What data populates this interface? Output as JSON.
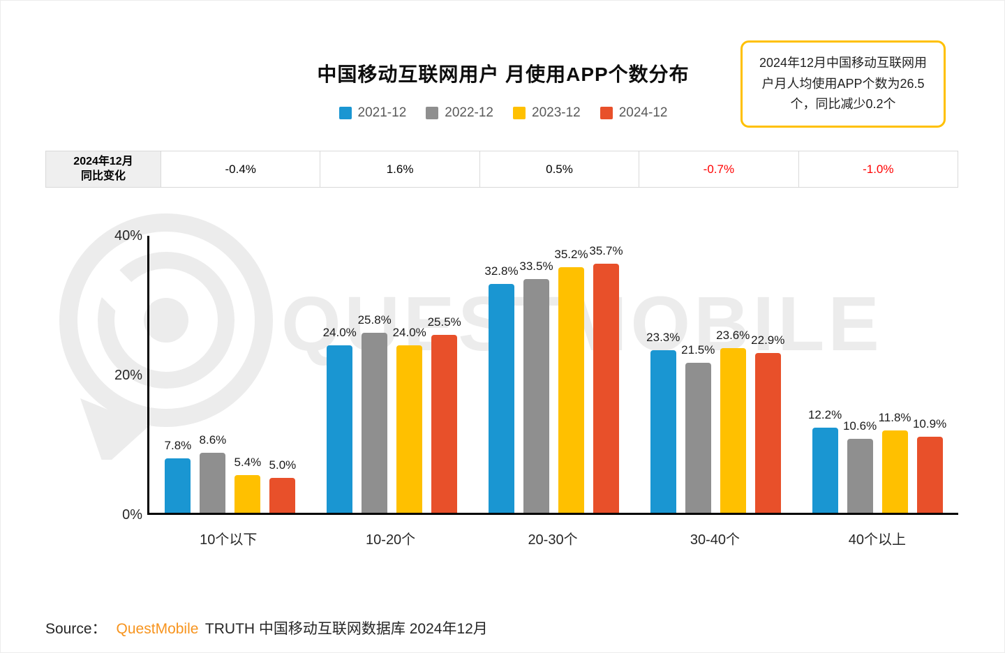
{
  "header": {
    "title": "中国移动互联网用户 月使用APP个数分布",
    "callout": "2024年12月中国移动互联网用户月人均使用APP个数为26.5个，同比减少0.2个"
  },
  "yoy_table": {
    "row_header": "2024年12月\n同比变化",
    "values": [
      {
        "text": "-0.4%",
        "color": "#000000"
      },
      {
        "text": "1.6%",
        "color": "#000000"
      },
      {
        "text": "0.5%",
        "color": "#000000"
      },
      {
        "text": "-0.7%",
        "color": "#ff0000"
      },
      {
        "text": "-1.0%",
        "color": "#ff0000"
      }
    ]
  },
  "chart_data": {
    "type": "bar",
    "title": "中国移动互联网用户 月使用APP个数分布",
    "categories": [
      "10个以下",
      "10-20个",
      "20-30个",
      "30-40个",
      "40个以上"
    ],
    "series": [
      {
        "name": "2021-12",
        "color": "#1a96d2",
        "values": [
          7.8,
          24.0,
          32.8,
          23.3,
          12.2
        ]
      },
      {
        "name": "2022-12",
        "color": "#8f8f8f",
        "values": [
          8.6,
          25.8,
          33.5,
          21.5,
          10.6
        ]
      },
      {
        "name": "2023-12",
        "color": "#ffc000",
        "values": [
          5.4,
          24.0,
          35.2,
          23.6,
          11.8
        ]
      },
      {
        "name": "2024-12",
        "color": "#e8502a",
        "values": [
          5.0,
          25.5,
          35.7,
          22.9,
          10.9
        ]
      }
    ],
    "xlabel": "",
    "ylabel": "",
    "ylim": [
      0,
      40
    ],
    "yticks": [
      "0%",
      "20%",
      "40%"
    ],
    "grid": false,
    "legend_position": "top",
    "value_label_format": "one-decimal-percent"
  },
  "source": {
    "prefix": "Source：",
    "brand": "QuestMobile",
    "brand_color": "#f7941e",
    "suffix": "TRUTH 中国移动互联网数据库 2024年12月"
  },
  "watermark": "QUESTMOBILE"
}
